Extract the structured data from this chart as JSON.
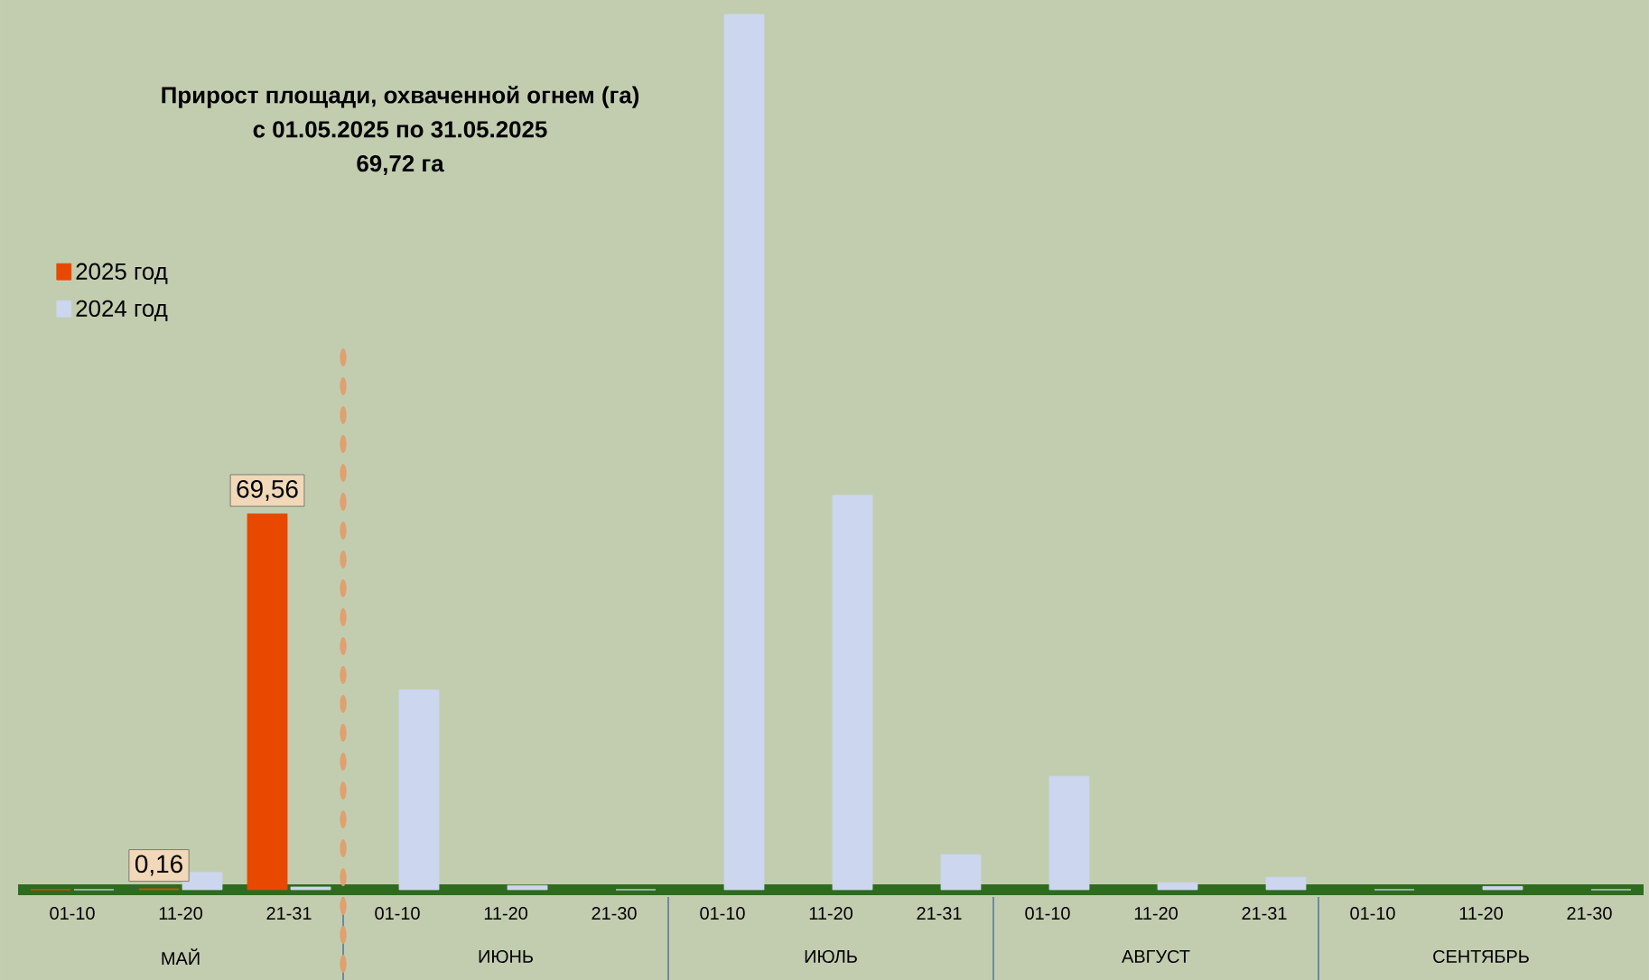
{
  "chart_data": {
    "type": "bar",
    "ylim": [
      0,
      163
    ],
    "tick_labels": "x",
    "title": "Прирост площади, охваченной огнем (га)",
    "subtitle": "с 01.05.2025  по  31.05.2025",
    "annotations": [
      "69,72 га",
      "МАЙ",
      "ИЮНЬ",
      "ИЮЛЬ",
      "АВГУСТ",
      "СЕНТЯБРЬ"
    ],
    "categories": [
      "01-10",
      "11-20",
      "21-31",
      "01-10",
      "11-20",
      "21-30",
      "01-10",
      "11-20",
      "21-31",
      "01-10",
      "11-20",
      "21-31",
      "01-10",
      "11-20",
      "21-30"
    ],
    "series": [
      {
        "name": "2025 год",
        "color": "#e84800",
        "values": [
          0,
          0.16,
          69.56,
          null,
          null,
          null,
          null,
          null,
          null,
          null,
          null,
          null,
          null,
          null,
          null
        ],
        "value_labels": [
          null,
          "0,16",
          "69,56",
          null,
          null,
          null,
          null,
          null,
          null,
          null,
          null,
          null,
          null,
          null,
          null
        ]
      },
      {
        "name": "2024 год",
        "color": "#ccd6ee",
        "values": [
          0,
          3.2,
          0.5,
          37,
          0.8,
          0,
          162,
          73,
          6.5,
          21,
          1.3,
          2.3,
          0,
          0.6,
          0
        ]
      }
    ],
    "legend": "top left",
    "grid": false
  }
}
